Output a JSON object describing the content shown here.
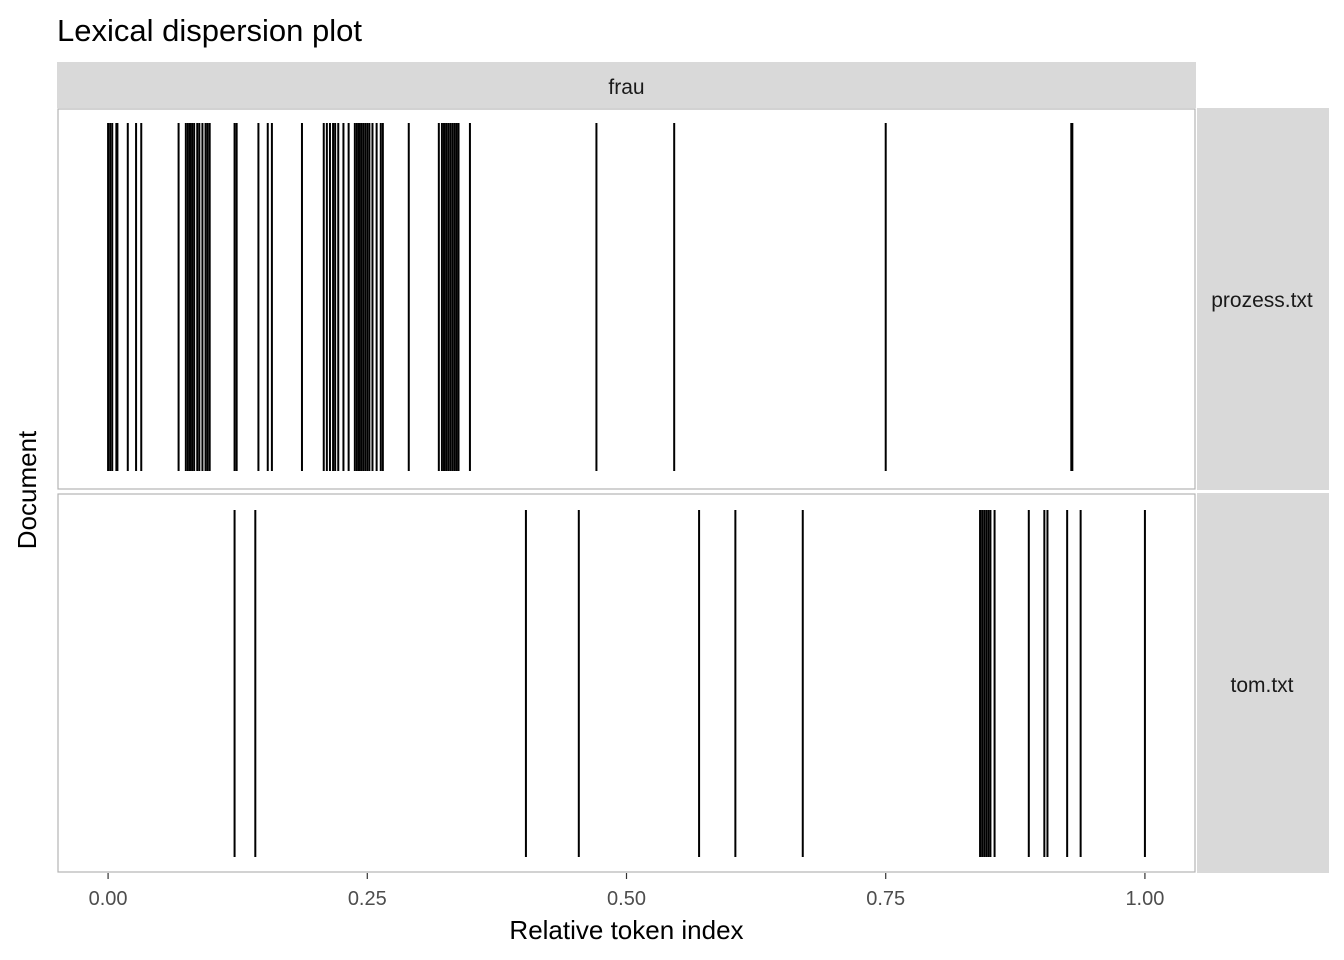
{
  "chart_data": {
    "type": "lexical-dispersion",
    "title": "Lexical dispersion plot",
    "xlabel": "Relative token index",
    "ylabel": "Document",
    "xlim": [
      -0.0483,
      1.0483
    ],
    "x_ticks": [
      0.0,
      0.25,
      0.5,
      0.75,
      1.0
    ],
    "x_tick_labels": [
      "0.00",
      "0.25",
      "0.50",
      "0.75",
      "1.00"
    ],
    "grid": false,
    "column_facets": [
      "frau"
    ],
    "panels": [
      {
        "document": "prozess.txt",
        "term": "frau",
        "positions": [
          0.0,
          0.002,
          0.004,
          0.008,
          0.009,
          0.019,
          0.027,
          0.032,
          0.068,
          0.075,
          0.077,
          0.079,
          0.081,
          0.083,
          0.086,
          0.088,
          0.091,
          0.094,
          0.096,
          0.098,
          0.122,
          0.124,
          0.145,
          0.154,
          0.158,
          0.187,
          0.208,
          0.211,
          0.214,
          0.217,
          0.219,
          0.222,
          0.227,
          0.232,
          0.238,
          0.24,
          0.242,
          0.244,
          0.246,
          0.248,
          0.25,
          0.252,
          0.255,
          0.259,
          0.263,
          0.265,
          0.29,
          0.319,
          0.322,
          0.324,
          0.326,
          0.328,
          0.33,
          0.332,
          0.334,
          0.336,
          0.338,
          0.349,
          0.471,
          0.546,
          0.75,
          0.929,
          0.93
        ]
      },
      {
        "document": "tom.txt",
        "term": "frau",
        "positions": [
          0.122,
          0.142,
          0.403,
          0.454,
          0.57,
          0.605,
          0.67,
          0.841,
          0.843,
          0.845,
          0.847,
          0.849,
          0.851,
          0.855,
          0.888,
          0.903,
          0.906,
          0.925,
          0.938,
          1.0
        ]
      }
    ]
  }
}
